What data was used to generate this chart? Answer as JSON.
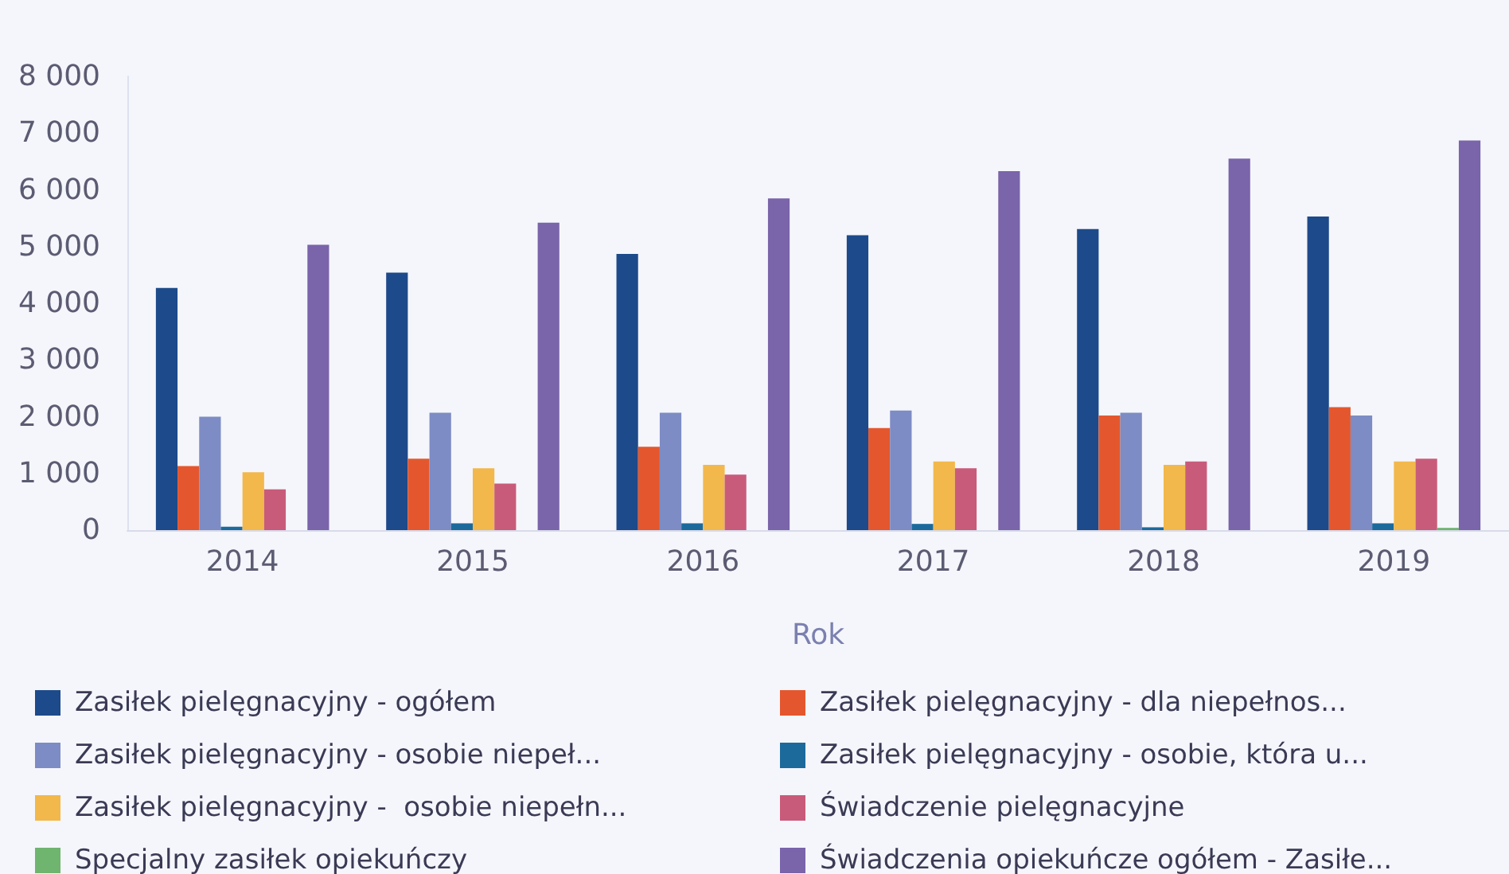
{
  "chart_data": {
    "type": "bar",
    "xlabel": "Rok",
    "categories": [
      "2014",
      "2015",
      "2016",
      "2017",
      "2018",
      "2019"
    ],
    "series": [
      {
        "name": "Zasiłek pielęgnacyjny - ogółem",
        "color": "#1d4a8a",
        "values": [
          4270,
          4540,
          4870,
          5200,
          5310,
          5530
        ]
      },
      {
        "name": "Zasiłek pielęgnacyjny - dla niepełnos...",
        "color": "#e4572e",
        "values": [
          1130,
          1260,
          1470,
          1800,
          2020,
          2170
        ]
      },
      {
        "name": "Zasiłek pielęgnacyjny - osobie niepeł...",
        "color": "#7d8cc4",
        "values": [
          2000,
          2070,
          2070,
          2110,
          2070,
          2020
        ]
      },
      {
        "name": "Zasiłek pielęgnacyjny - osobie, która u...",
        "color": "#1c6a9c",
        "values": [
          60,
          120,
          120,
          110,
          50,
          120
        ]
      },
      {
        "name": "Zasiłek pielęgnacyjny -  osobie niepełn...",
        "color": "#f2b84b",
        "values": [
          1020,
          1090,
          1150,
          1210,
          1150,
          1210
        ]
      },
      {
        "name": "Świadczenie pielęgnacyjne",
        "color": "#c95b7a",
        "values": [
          720,
          820,
          980,
          1090,
          1210,
          1260
        ]
      },
      {
        "name": "Specjalny zasiłek opiekuńczy",
        "color": "#6fb46f",
        "values": [
          null,
          null,
          null,
          null,
          null,
          40
        ]
      },
      {
        "name": "Świadczenia opiekuńcze ogółem - Zasiłe...",
        "color": "#7a64aa",
        "values": [
          5030,
          5420,
          5850,
          6330,
          6550,
          6870
        ]
      }
    ],
    "ylim": [
      0,
      8000
    ],
    "yticks": [
      0,
      {
        "value": 1000,
        "label": "1 000"
      },
      {
        "value": 2000,
        "label": "2 000"
      },
      {
        "value": 3000,
        "label": "3 000"
      },
      {
        "value": 4000,
        "label": "4 000"
      },
      {
        "value": 5000,
        "label": "5 000"
      },
      {
        "value": 6000,
        "label": "6 000"
      },
      {
        "value": 7000,
        "label": "7 000"
      },
      {
        "value": 8000,
        "label": "8 000"
      }
    ],
    "grid": false,
    "legend": "bottom"
  }
}
